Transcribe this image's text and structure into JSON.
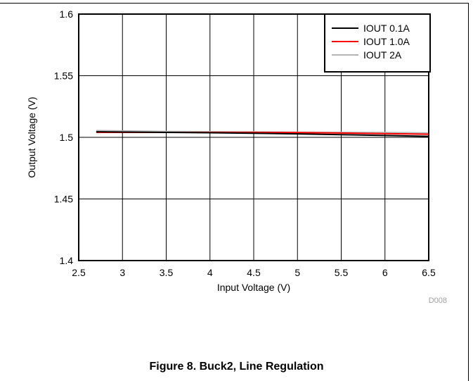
{
  "figure": {
    "caption": "Figure 8. Buck2, Line Regulation",
    "code": "D008"
  },
  "chart_data": {
    "type": "line",
    "title": "",
    "xlabel": "Input Voltage (V)",
    "ylabel": "Output Voltage (V)",
    "xlim": [
      2.5,
      6.5
    ],
    "ylim": [
      1.4,
      1.6
    ],
    "x_ticks": [
      "2.5",
      "3",
      "3.5",
      "4",
      "4.5",
      "5",
      "5.5",
      "6",
      "6.5"
    ],
    "y_ticks": [
      "1.4",
      "1.45",
      "1.5",
      "1.55",
      "1.6"
    ],
    "grid": true,
    "legend_position": "top-right",
    "series": [
      {
        "name": "IOUT 0.1A",
        "color": "#000000",
        "x": [
          2.7,
          3.0,
          3.5,
          4.0,
          4.5,
          5.0,
          5.5,
          6.0,
          6.5
        ],
        "y": [
          1.5045,
          1.5043,
          1.504,
          1.5037,
          1.5033,
          1.5028,
          1.5022,
          1.5015,
          1.5008
        ]
      },
      {
        "name": "IOUT 1.0A",
        "color": "#ff0000",
        "x": [
          2.7,
          3.0,
          3.5,
          4.0,
          4.5,
          5.0,
          5.5,
          6.0,
          6.5
        ],
        "y": [
          1.504,
          1.504,
          1.504,
          1.504,
          1.504,
          1.5038,
          1.5035,
          1.503,
          1.5025
        ]
      },
      {
        "name": "IOUT 2A",
        "color": "#b4b4b4",
        "x": [
          2.7,
          3.0,
          3.5,
          4.0,
          4.5,
          5.0,
          5.5,
          6.0,
          6.5
        ],
        "y": [
          1.5055,
          1.5052,
          1.5048,
          1.5046,
          1.5044,
          1.5042,
          1.504,
          1.5038,
          1.5035
        ]
      }
    ]
  }
}
